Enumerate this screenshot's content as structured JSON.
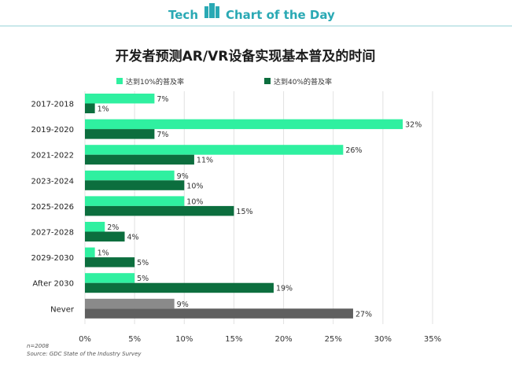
{
  "header": {
    "left": "Tech",
    "right": "Chart of the Day"
  },
  "colors": {
    "brand": "#2aa9b4",
    "rule": "#c9e8ea",
    "series_light": "#2ff0a0",
    "series_dark": "#0c6e3e",
    "never_light": "#8a8a8a",
    "never_dark": "#5f5f5f",
    "grid": "#e2e2e2",
    "text": "#333333"
  },
  "chart_data": {
    "type": "bar",
    "orientation": "horizontal",
    "title": "开发者预测AR/VR设备实现基本普及的时间",
    "categories": [
      "2017-2018",
      "2019-2020",
      "2021-2022",
      "2023-2024",
      "2025-2026",
      "2027-2028",
      "2029-2030",
      "After 2030",
      "Never"
    ],
    "series": [
      {
        "name": "达到10%的普及率",
        "values": [
          7,
          32,
          26,
          9,
          10,
          2,
          1,
          5,
          9
        ]
      },
      {
        "name": "达到40%的普及率",
        "values": [
          1,
          7,
          11,
          10,
          15,
          4,
          5,
          19,
          27
        ]
      }
    ],
    "value_suffix": "%",
    "xlim": [
      0,
      35
    ],
    "xticks": [
      0,
      5,
      10,
      15,
      20,
      25,
      30,
      35
    ],
    "xtick_labels": [
      "0%",
      "5%",
      "10%",
      "15%",
      "20%",
      "25%",
      "30%",
      "35%"
    ],
    "grid": true,
    "legend_position": "top"
  },
  "footnotes": {
    "n": "n=2008",
    "source": "Source: GDC State of the Industry Survey"
  }
}
